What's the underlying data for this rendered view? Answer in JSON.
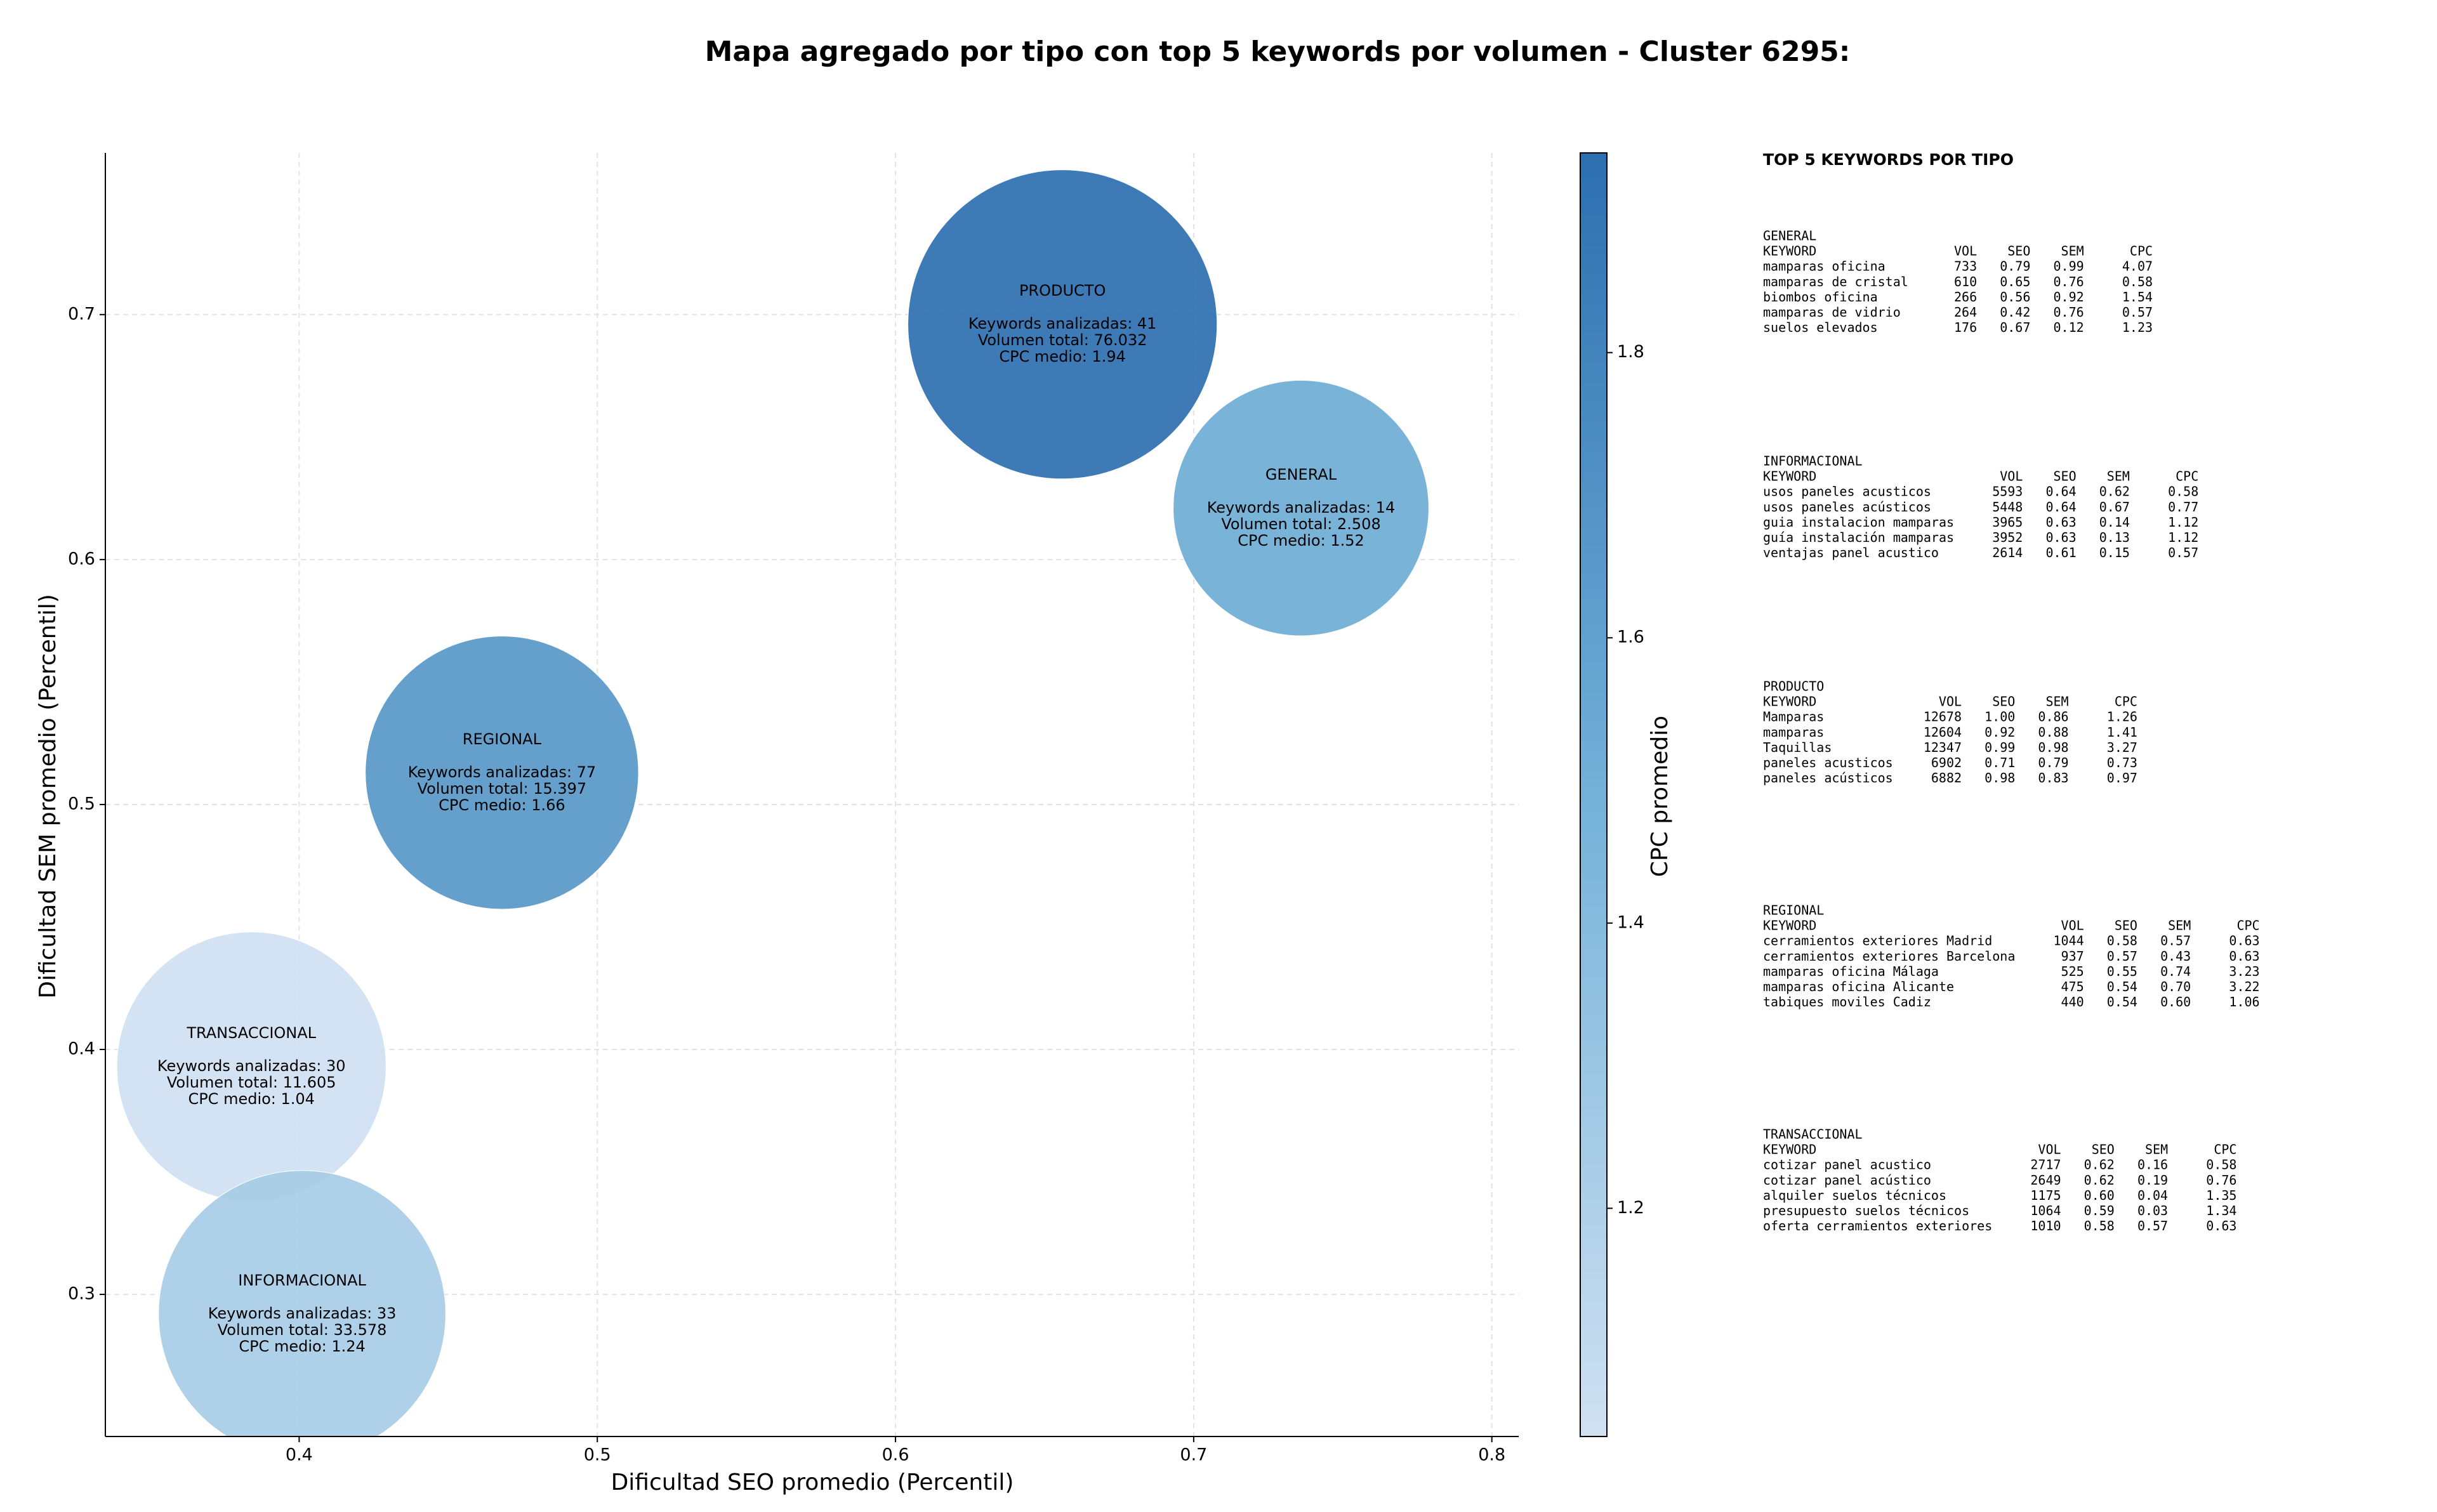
{
  "chart_data": {
    "type": "bubble",
    "title": "Mapa agregado por tipo con top 5 keywords por volumen - Cluster 6295:",
    "x_label": "Dificultad SEO promedio (Percentil)",
    "y_label": "Dificultad SEM promedio (Percentil)",
    "colorbar_label": "CPC promedio",
    "xlim": [
      0.335,
      0.809
    ],
    "ylim": [
      0.242,
      0.766
    ],
    "xticks": [
      0.4,
      0.5,
      0.6,
      0.7,
      0.8
    ],
    "yticks": [
      0.3,
      0.4,
      0.5,
      0.6,
      0.7
    ],
    "clim": [
      1.04,
      1.94
    ],
    "cticks": [
      1.2,
      1.4,
      1.6,
      1.8
    ],
    "colormap": [
      "#d0e1f2",
      "#73b1d8",
      "#2c6fb0"
    ],
    "grid": true,
    "points": [
      {
        "name": "PRODUCTO",
        "x": 0.656,
        "y": 0.696,
        "keywords_label": "Keywords analizadas: 41",
        "volume": 76032,
        "volume_label": "Volumen total: 76.032",
        "cpc": 1.94,
        "cpc_label": "CPC medio: 1.94"
      },
      {
        "name": "GENERAL",
        "x": 0.736,
        "y": 0.621,
        "keywords_label": "Keywords analizadas: 14",
        "volume": 2508,
        "volume_label": "Volumen total: 2.508",
        "cpc": 1.52,
        "cpc_label": "CPC medio: 1.52"
      },
      {
        "name": "REGIONAL",
        "x": 0.468,
        "y": 0.513,
        "keywords_label": "Keywords analizadas: 77",
        "volume": 15397,
        "volume_label": "Volumen total: 15.397",
        "cpc": 1.66,
        "cpc_label": "CPC medio: 1.66"
      },
      {
        "name": "TRANSACCIONAL",
        "x": 0.384,
        "y": 0.393,
        "keywords_label": "Keywords analizadas: 30",
        "volume": 11605,
        "volume_label": "Volumen total: 11.605",
        "cpc": 1.04,
        "cpc_label": "CPC medio: 1.04"
      },
      {
        "name": "INFORMACIONAL",
        "x": 0.401,
        "y": 0.292,
        "keywords_label": "Keywords analizadas: 33",
        "volume": 33578,
        "volume_label": "Volumen total: 33.578",
        "cpc": 1.24,
        "cpc_label": "CPC medio: 1.24"
      }
    ]
  },
  "panel": {
    "title": "TOP 5 KEYWORDS POR TIPO",
    "sections": [
      {
        "title": "GENERAL",
        "header": [
          "KEYWORD",
          "VOL",
          "SEO",
          "SEM",
          "CPC"
        ],
        "rows": [
          [
            "mamparas oficina",
            "733",
            "0.79",
            "0.99",
            "4.07"
          ],
          [
            "mamparas de cristal",
            "610",
            "0.65",
            "0.76",
            "0.58"
          ],
          [
            "biombos oficina",
            "266",
            "0.56",
            "0.92",
            "1.54"
          ],
          [
            "mamparas de vidrio",
            "264",
            "0.42",
            "0.76",
            "0.57"
          ],
          [
            "suelos elevados",
            "176",
            "0.67",
            "0.12",
            "1.23"
          ]
        ]
      },
      {
        "title": "INFORMACIONAL",
        "header": [
          "KEYWORD",
          "VOL",
          "SEO",
          "SEM",
          "CPC"
        ],
        "rows": [
          [
            "usos paneles acusticos",
            "5593",
            "0.64",
            "0.62",
            "0.58"
          ],
          [
            "usos paneles acústicos",
            "5448",
            "0.64",
            "0.67",
            "0.77"
          ],
          [
            "guia instalacion mamparas",
            "3965",
            "0.63",
            "0.14",
            "1.12"
          ],
          [
            "guía instalación mamparas",
            "3952",
            "0.63",
            "0.13",
            "1.12"
          ],
          [
            "ventajas panel acustico",
            "2614",
            "0.61",
            "0.15",
            "0.57"
          ]
        ]
      },
      {
        "title": "PRODUCTO",
        "header": [
          "KEYWORD",
          "VOL",
          "SEO",
          "SEM",
          "CPC"
        ],
        "rows": [
          [
            "Mamparas",
            "12678",
            "1.00",
            "0.86",
            "1.26"
          ],
          [
            "mamparas",
            "12604",
            "0.92",
            "0.88",
            "1.41"
          ],
          [
            "Taquillas",
            "12347",
            "0.99",
            "0.98",
            "3.27"
          ],
          [
            "paneles acusticos",
            "6902",
            "0.71",
            "0.79",
            "0.73"
          ],
          [
            "paneles acústicos",
            "6882",
            "0.98",
            "0.83",
            "0.97"
          ]
        ]
      },
      {
        "title": "REGIONAL",
        "header": [
          "KEYWORD",
          "VOL",
          "SEO",
          "SEM",
          "CPC"
        ],
        "rows": [
          [
            "cerramientos exteriores Madrid",
            "1044",
            "0.58",
            "0.57",
            "0.63"
          ],
          [
            "cerramientos exteriores Barcelona",
            "937",
            "0.57",
            "0.43",
            "0.63"
          ],
          [
            "mamparas oficina Málaga",
            "525",
            "0.55",
            "0.74",
            "3.23"
          ],
          [
            "mamparas oficina Alicante",
            "475",
            "0.54",
            "0.70",
            "3.22"
          ],
          [
            "tabiques moviles Cadiz",
            "440",
            "0.54",
            "0.60",
            "1.06"
          ]
        ]
      },
      {
        "title": "TRANSACCIONAL",
        "header": [
          "KEYWORD",
          "VOL",
          "SEO",
          "SEM",
          "CPC"
        ],
        "rows": [
          [
            "cotizar panel acustico",
            "2717",
            "0.62",
            "0.16",
            "0.58"
          ],
          [
            "cotizar panel acústico",
            "2649",
            "0.62",
            "0.19",
            "0.76"
          ],
          [
            "alquiler suelos técnicos",
            "1175",
            "0.60",
            "0.04",
            "1.35"
          ],
          [
            "presupuesto suelos técnicos",
            "1064",
            "0.59",
            "0.03",
            "1.34"
          ],
          [
            "oferta cerramientos exteriores",
            "1010",
            "0.58",
            "0.57",
            "0.63"
          ]
        ]
      }
    ]
  }
}
